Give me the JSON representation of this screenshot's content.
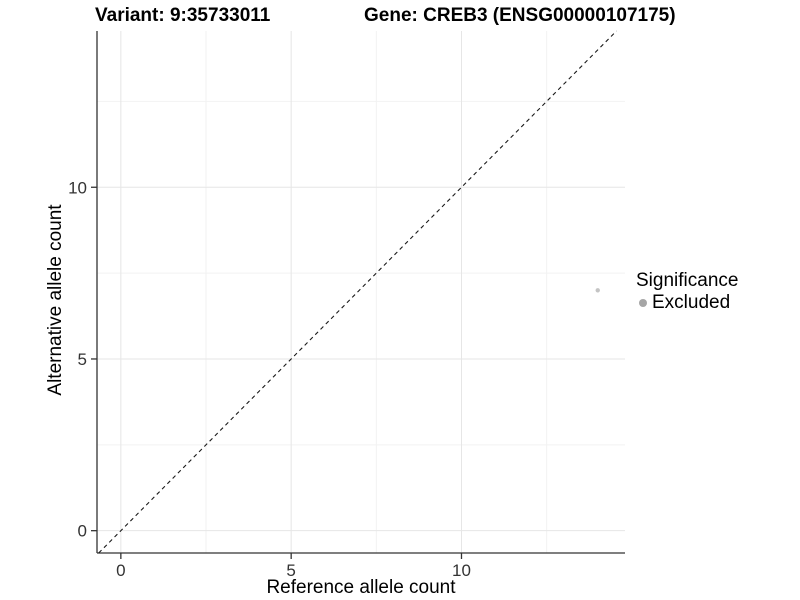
{
  "header": {
    "variant_title": "Variant: 9:35733011",
    "gene_title": "Gene: CREB3 (ENSG00000107175)"
  },
  "axes": {
    "x_label": "Reference allele count",
    "y_label": "Alternative allele count"
  },
  "legend": {
    "title": "Significance",
    "items": [
      {
        "label": "Excluded",
        "color": "#a6a6a6"
      }
    ]
  },
  "colors": {
    "background": "#ffffff",
    "grid_major": "#e6e6e6",
    "grid_minor": "#f2f2f2",
    "axis_line": "#333333",
    "tick_mark": "#333333",
    "tick_label": "#333333",
    "reference_line": "#1a1a1a",
    "point": "#c4c4c4"
  },
  "chart_data": {
    "type": "scatter",
    "title": "Variant: 9:35733011 — Gene: CREB3 (ENSG00000107175)",
    "xlabel": "Reference allele count",
    "ylabel": "Alternative allele count",
    "xlim": [
      -0.7,
      14.8
    ],
    "ylim": [
      -0.65,
      14.55
    ],
    "x_ticks": [
      0,
      5,
      10
    ],
    "y_ticks": [
      0,
      5,
      10
    ],
    "x_minor_ticks": [
      2.5,
      7.5,
      12.5
    ],
    "y_minor_ticks": [
      2.5,
      7.5,
      12.5
    ],
    "grid": true,
    "legend_position": "right",
    "series": [
      {
        "name": "Excluded",
        "color": "#c4c4c4",
        "points": [
          {
            "x": 14,
            "y": 7
          }
        ]
      }
    ],
    "reference_line": {
      "type": "identity",
      "equation": "y = x",
      "style": "dashed"
    }
  }
}
